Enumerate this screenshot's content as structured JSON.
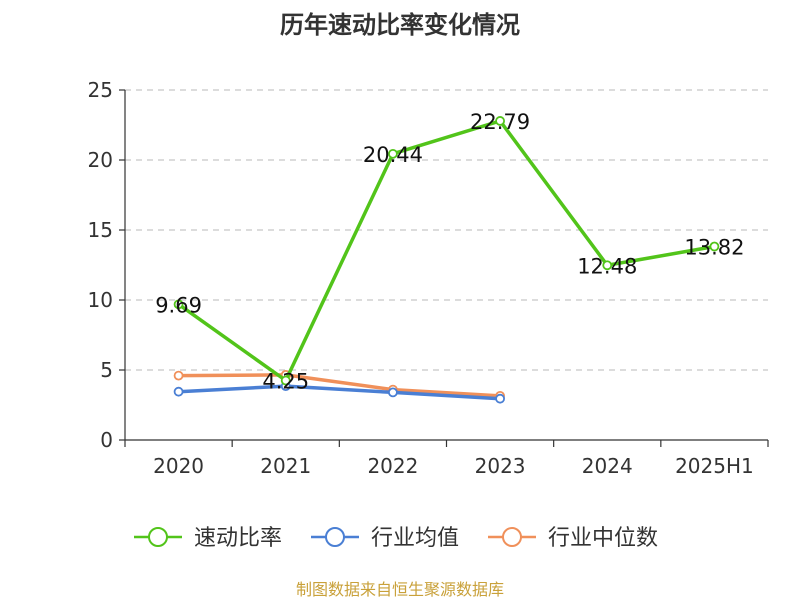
{
  "chart_data": {
    "type": "line",
    "title": "历年速动比率变化情况",
    "categories": [
      "2020",
      "2021",
      "2022",
      "2023",
      "2024",
      "2025H1"
    ],
    "ylim": [
      0,
      25
    ],
    "yticks": [
      0,
      5,
      10,
      15,
      20,
      25
    ],
    "grid": true,
    "legend": "bottom",
    "series": [
      {
        "name": "速动比率",
        "color": "#52c41a",
        "values": [
          9.69,
          4.25,
          20.44,
          22.79,
          12.48,
          13.82
        ],
        "labels": [
          "9.69",
          "4.25",
          "20.44",
          "22.79",
          "12.48",
          "13.82"
        ]
      },
      {
        "name": "行业均值",
        "color": "#4a7fd4",
        "values": [
          3.45,
          3.85,
          3.4,
          2.95,
          null,
          null
        ]
      },
      {
        "name": "行业中位数",
        "color": "#f0905a",
        "values": [
          4.6,
          4.65,
          3.6,
          3.15,
          null,
          null
        ]
      }
    ],
    "source": "制图数据来自恒生聚源数据库"
  }
}
